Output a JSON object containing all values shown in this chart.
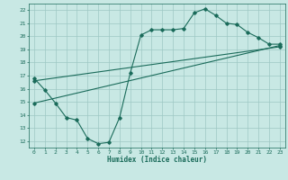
{
  "xlabel": "Humidex (Indice chaleur)",
  "background_color": "#c8e8e4",
  "grid_color": "#9dc8c4",
  "line_color": "#1a6b5a",
  "xlim": [
    -0.5,
    23.5
  ],
  "ylim": [
    11.5,
    22.5
  ],
  "xticks": [
    0,
    1,
    2,
    3,
    4,
    5,
    6,
    7,
    8,
    9,
    10,
    11,
    12,
    13,
    14,
    15,
    16,
    17,
    18,
    19,
    20,
    21,
    22,
    23
  ],
  "yticks": [
    12,
    13,
    14,
    15,
    16,
    17,
    18,
    19,
    20,
    21,
    22
  ],
  "curve1_x": [
    0,
    1,
    2,
    3,
    4,
    5,
    6,
    7,
    8,
    9,
    10,
    11,
    12,
    13,
    14,
    15,
    16,
    17,
    18,
    19,
    20,
    21,
    22,
    23
  ],
  "curve1_y": [
    16.8,
    15.9,
    14.9,
    13.8,
    13.6,
    12.2,
    11.8,
    11.9,
    13.8,
    17.2,
    20.1,
    20.5,
    20.5,
    20.5,
    20.6,
    21.8,
    22.1,
    21.6,
    21.0,
    20.9,
    20.3,
    19.9,
    19.4,
    19.4
  ],
  "curve2_x": [
    0,
    23
  ],
  "curve2_y": [
    14.9,
    19.3
  ],
  "curve3_x": [
    0,
    23
  ],
  "curve3_y": [
    16.6,
    19.2
  ]
}
